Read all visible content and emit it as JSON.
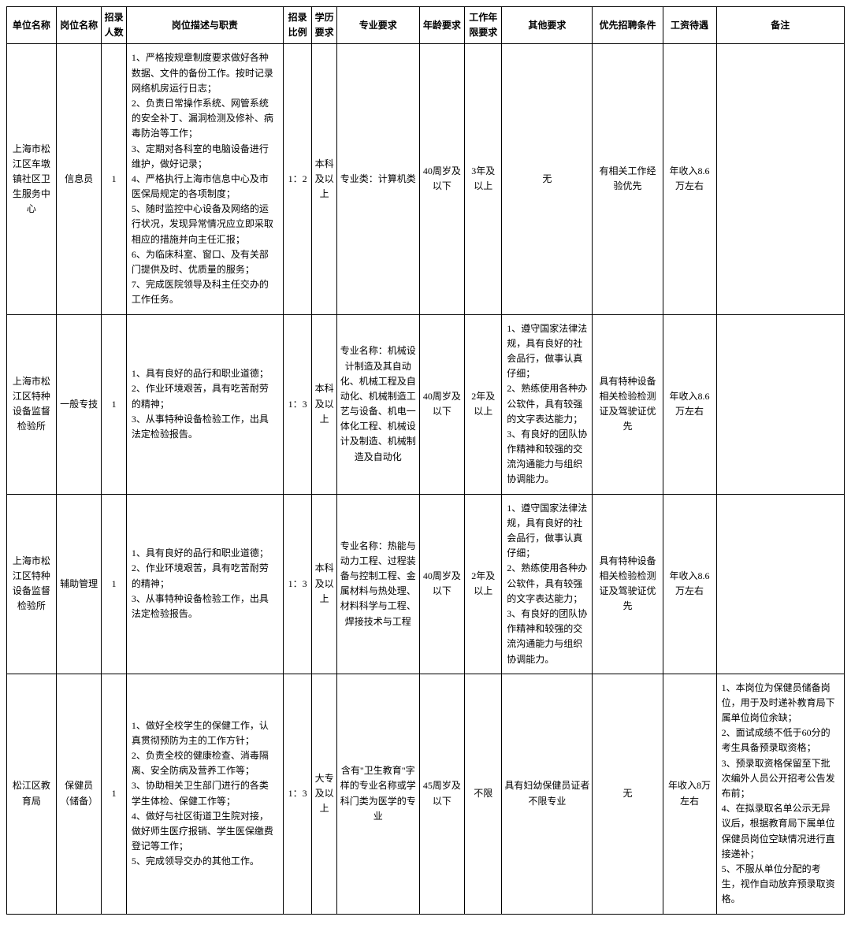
{
  "headers": {
    "unit": "单位名称",
    "post": "岗位名称",
    "count": "招录人数",
    "desc": "岗位描述与职责",
    "ratio": "招录比例",
    "edu": "学历要求",
    "major": "专业要求",
    "age": "年龄要求",
    "exp": "工作年限要求",
    "other": "其他要求",
    "pref": "优先招聘条件",
    "salary": "工资待遇",
    "remark": "备注"
  },
  "rows": [
    {
      "unit": "上海市松江区车墩镇社区卫生服务中心",
      "post": "信息员",
      "count": "1",
      "desc": "1、严格按规章制度要求做好各种数据、文件的备份工作。按时记录网络机房运行日志；\n2、负责日常操作系统、网管系统的安全补丁、漏洞检测及修补、病毒防治等工作；\n3、定期对各科室的电脑设备进行维护，做好记录；\n4、严格执行上海市信息中心及市医保局规定的各项制度；\n5、随时监控中心设备及网络的运行状况，发现异常情况应立即采取相应的措施并向主任汇报；\n6、为临床科室、窗口、及有关部门提供及时、优质量的服务；\n7、完成医院领导及科主任交办的工作任务。",
      "ratio": "1：2",
      "edu": "本科及以上",
      "major": "专业类：计算机类",
      "age": "40周岁及以下",
      "exp": "3年及以上",
      "other": "无",
      "pref": "有相关工作经验优先",
      "salary": "年收入8.6万左右",
      "remark": ""
    },
    {
      "unit": "上海市松江区特种设备监督检验所",
      "post": "一般专技",
      "count": "1",
      "desc": "1、具有良好的品行和职业道德；\n2、作业环境艰苦，具有吃苦耐劳的精神；\n3、从事特种设备检验工作，出具法定检验报告。",
      "ratio": "1：3",
      "edu": "本科及以上",
      "major": "专业名称：机械设计制造及其自动化、机械工程及自动化、机械制造工艺与设备、机电一体化工程、机械设计及制造、机械制造及自动化",
      "age": "40周岁及以下",
      "exp": "2年及以上",
      "other": "1、遵守国家法律法规，具有良好的社会品行，做事认真仔细；\n2、熟练使用各种办公软件，具有较强的文字表达能力；\n3、有良好的团队协作精神和较强的交流沟通能力与组织协调能力。",
      "pref": "具有特种设备相关检验检测证及驾驶证优先",
      "salary": "年收入8.6万左右",
      "remark": ""
    },
    {
      "unit": "上海市松江区特种设备监督检验所",
      "post": "辅助管理",
      "count": "1",
      "desc": "1、具有良好的品行和职业道德；\n2、作业环境艰苦，具有吃苦耐劳的精神；\n3、从事特种设备检验工作，出具法定检验报告。",
      "ratio": "1：3",
      "edu": "本科及以上",
      "major": "专业名称：热能与动力工程、过程装备与控制工程、金属材料与热处理、材料科学与工程、焊接技术与工程",
      "age": "40周岁及以下",
      "exp": "2年及以上",
      "other": "1、遵守国家法律法规，具有良好的社会品行，做事认真仔细；\n2、熟练使用各种办公软件，具有较强的文字表达能力；\n3、有良好的团队协作精神和较强的交流沟通能力与组织协调能力。",
      "pref": "具有特种设备相关检验检测证及驾驶证优先",
      "salary": "年收入8.6万左右",
      "remark": ""
    },
    {
      "unit": "松江区教育局",
      "post": "保健员（储备）",
      "count": "1",
      "desc": "1、做好全校学生的保健工作，认真贯彻预防为主的工作方针；\n2、负责全校的健康检查、消毒隔离、安全防病及营养工作等；\n3、协助相关卫生部门进行的各类学生体检、保健工作等；\n4、做好与社区街道卫生院对接，做好师生医疗报销、学生医保缴费登记等工作；\n5、完成领导交办的其他工作。",
      "ratio": "1：3",
      "edu": "大专及以上",
      "major": "含有\"卫生教育\"字样的专业名称或学科门类为医学的专业",
      "age": "45周岁及以下",
      "exp": "不限",
      "other": "具有妇幼保健员证者不限专业",
      "pref": "无",
      "salary": "年收入8万左右",
      "remark": "1、本岗位为保健员储备岗位，用于及时递补教育局下属单位岗位余缺；\n2、面试成绩不低于60分的考生具备预录取资格；\n3、预录取资格保留至下批次编外人员公开招考公告发布前；\n4、在拟录取名单公示无异议后，根据教育局下属单位保健员岗位空缺情况进行直接递补；\n5、不服从单位分配的考生，视作自动放弃预录取资格。"
    }
  ]
}
